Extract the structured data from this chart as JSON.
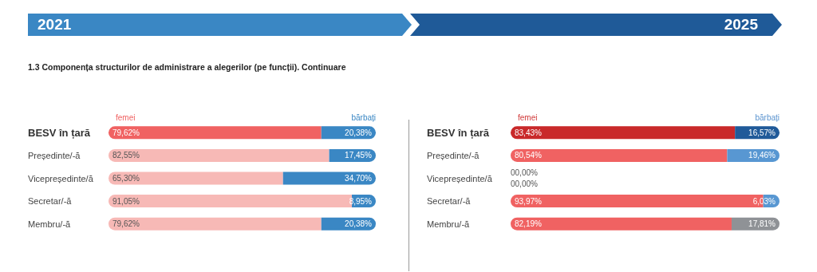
{
  "chart_data": [
    {
      "type": "bar",
      "orientation": "horizontal",
      "stacked": true,
      "title": "2021",
      "subtitle": "1.3  Componența structurilor de administrare a alegerilor (pe funcții). Continuare",
      "categories": [
        "BESV în țară",
        "Președinte/-ă",
        "Vicepreședinte/ă",
        "Secretar/-ă",
        "Membru/-ă"
      ],
      "xlim": [
        0,
        100
      ],
      "tick_labels": "y",
      "legend": "top",
      "series": [
        {
          "name": "femei",
          "color": "#f06262",
          "colors": [
            "#f06262",
            "#f7b9b6",
            "#f7b9b6",
            "#f7b9b6",
            "#f7b9b6"
          ],
          "values": [
            79.62,
            82.55,
            65.3,
            91.05,
            79.62
          ],
          "value_labels": [
            "79,62%",
            "82,55%",
            "65,30%",
            "91,05%",
            "79,62%"
          ]
        },
        {
          "name": "bărbați",
          "color": "#3a87c4",
          "colors": [
            "#3a87c4",
            "#3a87c4",
            "#3a87c4",
            "#3a87c4",
            "#3a87c4"
          ],
          "values": [
            20.38,
            17.45,
            34.7,
            8.95,
            20.38
          ],
          "value_labels": [
            "20,38%",
            "17,45%",
            "34,70%",
            "8,95%",
            "20,38%"
          ]
        }
      ]
    },
    {
      "type": "bar",
      "orientation": "horizontal",
      "stacked": true,
      "title": "2025",
      "categories": [
        "BESV în țară",
        "Președinte/-ă",
        "Vicepreședinte/ă",
        "Secretar/-ă",
        "Membru/-ă"
      ],
      "xlim": [
        0,
        100
      ],
      "tick_labels": "y",
      "legend": "top",
      "series": [
        {
          "name": "femei",
          "color": "#d13a3a",
          "colors": [
            "#c9292a",
            "#f06262",
            "#d6d6d6",
            "#f06262",
            "#f06262"
          ],
          "values": [
            83.43,
            80.54,
            0,
            93.97,
            82.19
          ],
          "value_labels": [
            "83,43%",
            "80,54%",
            "00,00%",
            "93,97%",
            "82,19%"
          ]
        },
        {
          "name": "bărbați",
          "color": "#5a93cf",
          "colors": [
            "#205a99",
            "#5897d2",
            "#d6d6d6",
            "#5897d2",
            "#8f9296"
          ],
          "values": [
            16.57,
            19.46,
            0,
            6.03,
            17.81
          ],
          "value_labels": [
            "16,57%",
            "19,46%",
            "00,00%",
            "6,03%",
            "17,81%"
          ]
        }
      ]
    }
  ]
}
